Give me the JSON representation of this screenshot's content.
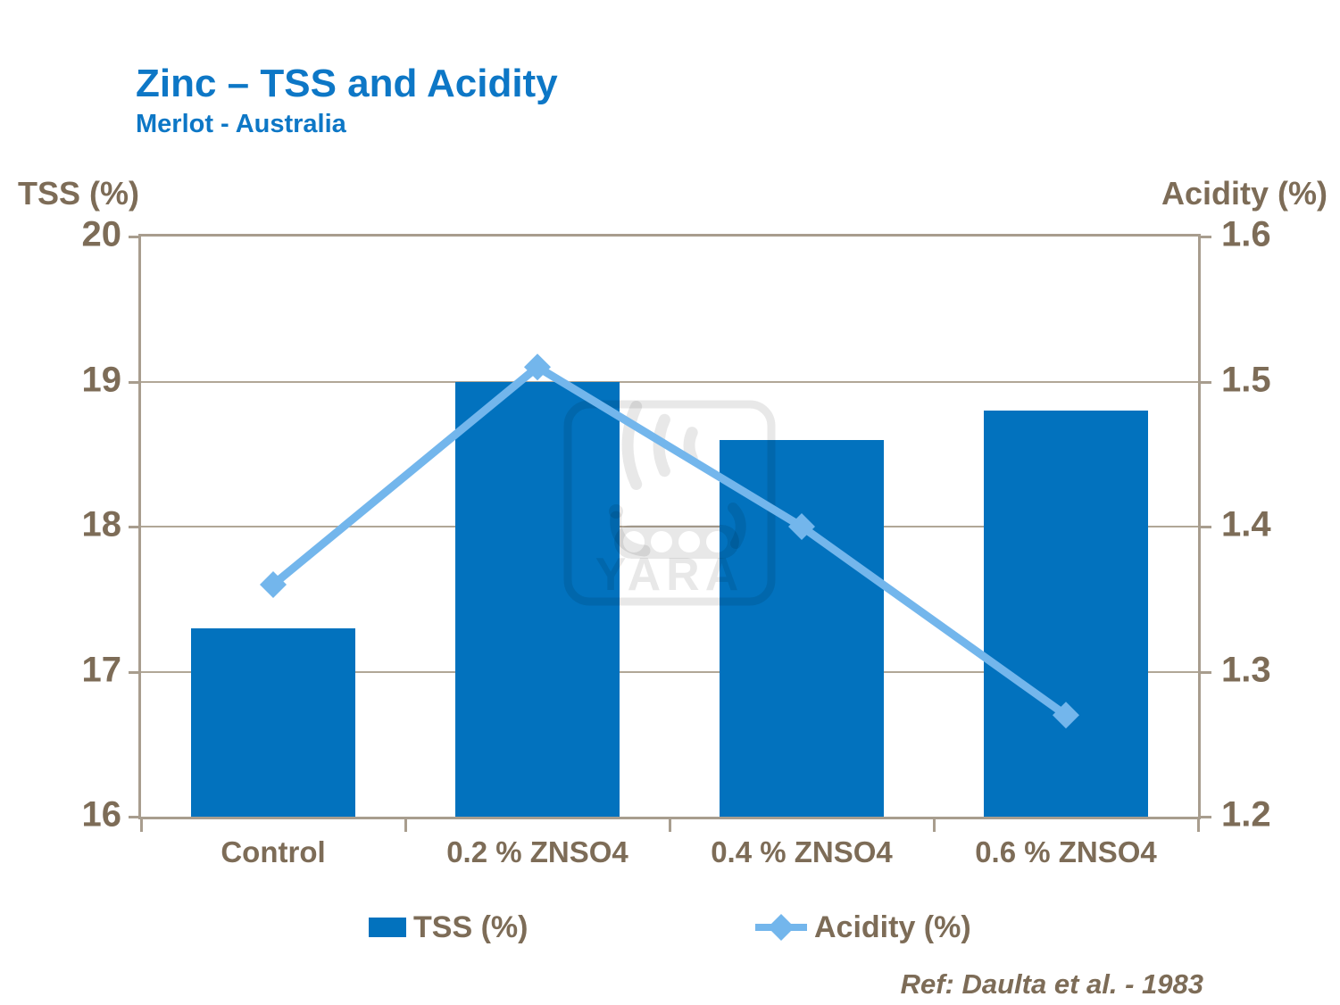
{
  "header": {
    "title": "Zinc – TSS and Acidity",
    "subtitle": "Merlot - Australia"
  },
  "chart_data": {
    "type": "bar+line",
    "categories": [
      "Control",
      "0.2 % ZNSO4",
      "0.4 % ZNSO4",
      "0.6 % ZNSO4"
    ],
    "series": [
      {
        "name": "TSS (%)",
        "type": "bar",
        "axis": "left",
        "values": [
          17.3,
          19.0,
          18.6,
          18.8
        ],
        "color": "#0272be"
      },
      {
        "name": "Acidity (%)",
        "type": "line",
        "axis": "right",
        "values": [
          1.36,
          1.51,
          1.4,
          1.27
        ],
        "color": "#73b6ec"
      }
    ],
    "left_axis": {
      "label": "TSS (%)",
      "min": 16,
      "max": 20,
      "ticks": [
        20,
        19,
        18,
        17,
        16
      ],
      "decimals": 0
    },
    "right_axis": {
      "label": "Acidity (%)",
      "min": 1.2,
      "max": 1.6,
      "ticks": [
        1.6,
        1.5,
        1.4,
        1.3,
        1.2
      ],
      "decimals": 1
    },
    "grid": true,
    "legend_position": "bottom",
    "title": "Zinc – TSS and Acidity",
    "subtitle": "Merlot - Australia"
  },
  "watermark": {
    "text": "YARA"
  },
  "footer": {
    "reference": "Ref: Daulta et al. - 1983"
  },
  "colors": {
    "title_blue": "#0d77c6",
    "bar_blue": "#0272be",
    "line_blue": "#73b6ec",
    "axis_text_brown": "#7d6c57",
    "grid_brown": "#b1a797",
    "plot_border": "#a89d8e",
    "watermark_gray": "rgba(0,0,0,0.09)"
  }
}
